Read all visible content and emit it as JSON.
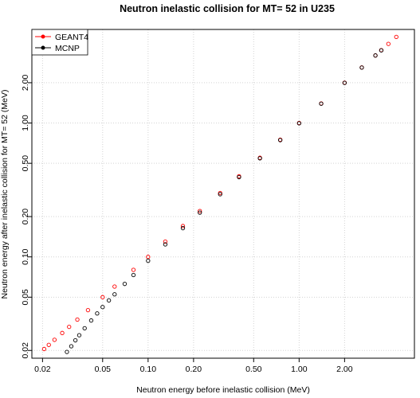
{
  "chart_data": {
    "type": "scatter",
    "title": "Neutron inelastic collision for MT= 52  in U235",
    "xlabel": "Neutron energy before inelastic collision (MeV)",
    "ylabel": "Neutron energy after inelastic collision for MT= 52  (MeV)",
    "x_scale": "log",
    "y_scale": "log",
    "xlim": [
      0.017,
      5.8
    ],
    "ylim": [
      0.0175,
      5.0
    ],
    "x_ticks": [
      {
        "value": 0.02,
        "label": "0.02"
      },
      {
        "value": 0.05,
        "label": "0.05"
      },
      {
        "value": 0.1,
        "label": "0.10"
      },
      {
        "value": 0.2,
        "label": "0.20"
      },
      {
        "value": 0.5,
        "label": "0.50"
      },
      {
        "value": 1.0,
        "label": "1.00"
      },
      {
        "value": 2.0,
        "label": "2.00"
      }
    ],
    "y_ticks": [
      {
        "value": 0.02,
        "label": "0.02"
      },
      {
        "value": 0.05,
        "label": "0.05"
      },
      {
        "value": 0.1,
        "label": "0.10"
      },
      {
        "value": 0.2,
        "label": "0.20"
      },
      {
        "value": 0.5,
        "label": "0.50"
      },
      {
        "value": 1.0,
        "label": "1.00"
      },
      {
        "value": 2.0,
        "label": "2.00"
      }
    ],
    "grid": true,
    "legend_position": "top-left",
    "series": [
      {
        "name": "GEANT4",
        "color": "#ff0000",
        "marker": "open-circle",
        "x": [
          0.0205,
          0.022,
          0.024,
          0.027,
          0.03,
          0.034,
          0.04,
          0.05,
          0.06,
          0.08,
          0.1,
          0.13,
          0.17,
          0.22,
          0.3,
          0.4,
          0.55,
          0.75,
          1.0,
          1.4,
          2.0,
          2.6,
          3.2,
          3.5,
          3.9,
          4.4
        ],
        "y": [
          0.0205,
          0.022,
          0.024,
          0.027,
          0.03,
          0.034,
          0.04,
          0.05,
          0.06,
          0.08,
          0.1,
          0.13,
          0.17,
          0.22,
          0.3,
          0.4,
          0.55,
          0.75,
          1.0,
          1.4,
          2.0,
          2.6,
          3.2,
          3.5,
          3.9,
          4.4
        ]
      },
      {
        "name": "MCNP",
        "color": "#000000",
        "marker": "open-circle",
        "x": [
          0.029,
          0.031,
          0.033,
          0.035,
          0.038,
          0.042,
          0.046,
          0.05,
          0.055,
          0.06,
          0.07,
          0.08,
          0.1,
          0.13,
          0.17,
          0.22,
          0.3,
          0.4,
          0.55,
          0.75,
          1.0,
          1.4,
          2.0,
          2.6,
          3.2,
          3.5
        ],
        "y": [
          0.0195,
          0.0215,
          0.0238,
          0.026,
          0.0293,
          0.0335,
          0.0378,
          0.0422,
          0.0473,
          0.0525,
          0.0628,
          0.0732,
          0.0935,
          0.124,
          0.164,
          0.214,
          0.294,
          0.394,
          0.545,
          0.745,
          0.995,
          1.395,
          1.995,
          2.595,
          3.195,
          3.49
        ]
      }
    ]
  }
}
